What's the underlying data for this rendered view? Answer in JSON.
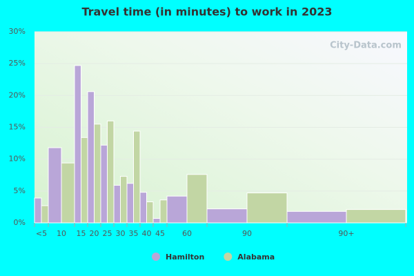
{
  "chart_data": {
    "type": "bar",
    "title": "Travel time (in minutes) to work in 2023",
    "watermark": "City-Data.com",
    "categories": [
      "<5",
      "10",
      "15",
      "20",
      "25",
      "30",
      "35",
      "40",
      "45",
      "60",
      "90",
      "90+"
    ],
    "series": [
      {
        "name": "Hamilton",
        "color": "#b9a6d8",
        "values": [
          3.9,
          11.8,
          24.7,
          20.6,
          12.2,
          5.9,
          6.2,
          4.8,
          0.7,
          4.2,
          2.2,
          1.8
        ]
      },
      {
        "name": "Alabama",
        "color": "#c2d6a4",
        "values": [
          2.7,
          9.4,
          13.4,
          15.5,
          16.0,
          7.3,
          14.4,
          3.3,
          3.6,
          7.6,
          4.7,
          2.1
        ]
      }
    ],
    "ylim": [
      0,
      30
    ],
    "yticks": [
      {
        "value": 0,
        "label": "0%"
      },
      {
        "value": 5,
        "label": "5%"
      },
      {
        "value": 10,
        "label": "10%"
      },
      {
        "value": 15,
        "label": "15%"
      },
      {
        "value": 20,
        "label": "20%"
      },
      {
        "value": 25,
        "label": "25%"
      },
      {
        "value": 30,
        "label": "30%"
      }
    ],
    "grid": true
  }
}
